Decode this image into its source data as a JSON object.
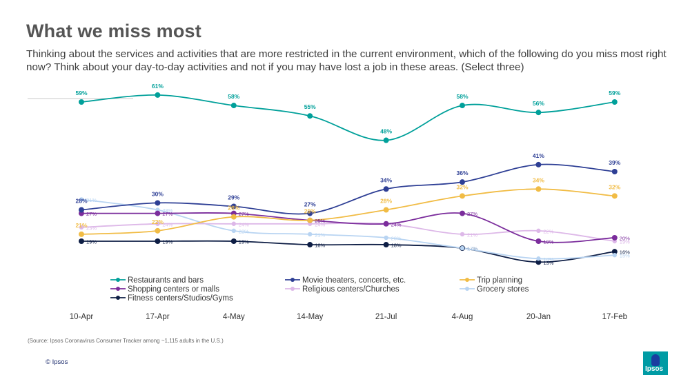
{
  "title": "What we miss most",
  "subtitle": "Thinking about the services and activities that are more restricted in the current environment, which of the following do you miss most right now? Think about your day-to-day activities and not if you may have lost a job in these areas. (Select three)",
  "source": "(Source: Ipsos Coronavirus Consumer Tracker among ~1,115 adults in the U.S.)",
  "copyright": "© Ipsos",
  "logo_text": "Ipsos",
  "colors": {
    "brand": "#009ba4",
    "brand_dark": "#1a3ea0",
    "text": "#3c3c3c"
  },
  "chart_data": {
    "type": "line",
    "title": "",
    "xlabel": "",
    "ylabel": "",
    "ylim": [
      10,
      65
    ],
    "grid": false,
    "legend_position": "bottom",
    "categories": [
      "10-Apr",
      "17-Apr",
      "4-May",
      "14-May",
      "21-Jul",
      "4-Aug",
      "20-Jan",
      "17-Feb"
    ],
    "series": [
      {
        "name": "Restaurants and bars",
        "color": "#00A09A",
        "values": [
          59,
          61,
          58,
          55,
          48,
          58,
          56,
          59
        ],
        "labels": [
          "59%",
          "61%",
          "58%",
          "55%",
          "48%",
          "58%",
          "56%",
          "59%"
        ]
      },
      {
        "name": "Movie theaters, concerts, etc.",
        "color": "#2E3F95",
        "values": [
          28,
          30,
          29,
          27,
          34,
          36,
          41,
          39
        ],
        "labels": [
          "28%",
          "30%",
          "29%",
          "27%",
          "34%",
          "36%",
          "41%",
          "39%"
        ]
      },
      {
        "name": "Trip planning",
        "color": "#F1BC45",
        "values": [
          21,
          22,
          26,
          25,
          28,
          32,
          34,
          32
        ],
        "labels": [
          "21%",
          "22%",
          "26%",
          "25%",
          "28%",
          "32%",
          "34%",
          "32%"
        ]
      },
      {
        "name": "Shopping centers or malls",
        "color": "#7B2D9C",
        "values": [
          27,
          27,
          27,
          25,
          24,
          27,
          19,
          20
        ],
        "labels": [
          "27%",
          "27%",
          "27%",
          "25%",
          "24%",
          "27%",
          "19%",
          "20%"
        ]
      },
      {
        "name": "Religious centers/Churches",
        "color": "#DDB8E8",
        "values": [
          23,
          24,
          24,
          24,
          24,
          21,
          22,
          19
        ],
        "labels": [
          "23%",
          "24%",
          "24%",
          "24%",
          "24%",
          "21%",
          "22%",
          "19%"
        ]
      },
      {
        "name": "Grocery stores",
        "color": "#B8D4F2",
        "values": [
          31,
          28,
          22,
          21,
          20,
          17,
          14,
          15
        ],
        "labels": [
          "31%",
          "28%",
          "22%",
          "21%",
          "20%",
          "17%",
          "14%",
          "15%"
        ]
      },
      {
        "name": "Fitness centers/Studios/Gyms",
        "color": "#0E1E45",
        "values": [
          19,
          19,
          19,
          18,
          18,
          17,
          13,
          16
        ],
        "labels": [
          "19%",
          "19%",
          "19%",
          "18%",
          "18%",
          "17%",
          "13%",
          "16%"
        ]
      }
    ]
  }
}
